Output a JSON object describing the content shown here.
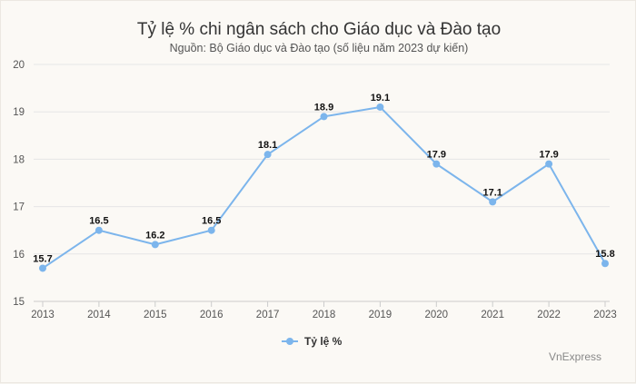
{
  "chart_data": {
    "type": "line",
    "title": "Tỷ lệ % chi ngân sách cho Giáo dục và Đào tạo",
    "subtitle": "Nguồn: Bộ Giáo dục và Đào tạo (số liệu năm 2023 dự kiến)",
    "x": [
      "2013",
      "2014",
      "2015",
      "2016",
      "2017",
      "2018",
      "2019",
      "2020",
      "2021",
      "2022",
      "2023"
    ],
    "series": [
      {
        "name": "Tỷ lệ %",
        "values": [
          15.7,
          16.5,
          16.2,
          16.5,
          18.1,
          18.9,
          19.1,
          17.9,
          17.1,
          17.9,
          15.8
        ],
        "labels": [
          "15.7",
          "16.5",
          "16.2",
          "16.5",
          "18.1",
          "18.9",
          "19.1",
          "17.9",
          "17.1",
          "17.9",
          "15.8"
        ],
        "color": "#7cb5ec"
      }
    ],
    "ylim": [
      15,
      20
    ],
    "yticks": [
      "15",
      "16",
      "17",
      "18",
      "19",
      "20"
    ],
    "grid": true,
    "legend": "bottom-center",
    "xlabel": "",
    "ylabel": ""
  },
  "credit": "VnExpress",
  "colors": {
    "grid": "#e6e6e6",
    "axis_text": "#555555"
  }
}
